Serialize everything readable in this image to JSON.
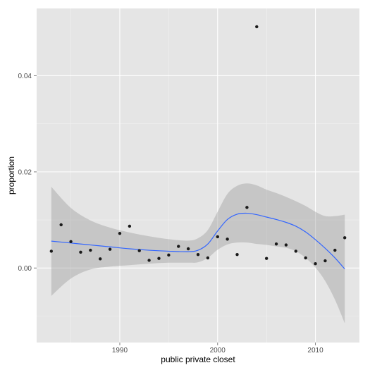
{
  "chart_data": {
    "type": "scatter",
    "title": "",
    "xlabel": "public private closet",
    "ylabel": "proportion",
    "xlim": [
      1981.5,
      2014.5
    ],
    "ylim": [
      -0.0155,
      0.054
    ],
    "x_ticks": [
      1990,
      2000,
      2010
    ],
    "x_tick_labels": [
      "1990",
      "2000",
      "2010"
    ],
    "y_ticks": [
      0.0,
      0.02,
      0.04
    ],
    "y_tick_labels": [
      "0.00",
      "0.02",
      "0.04"
    ],
    "grid": true,
    "legend": "none",
    "colors": {
      "panel": "#e5e5e5",
      "grid_major": "#ffffff",
      "grid_minor": "#f2f2f2",
      "points": "#1a1a1a",
      "smooth_line": "#3366ff",
      "ribbon": "#999999"
    },
    "points": {
      "x": [
        1983,
        1984,
        1985,
        1986,
        1987,
        1988,
        1989,
        1990,
        1991,
        1992,
        1993,
        1994,
        1995,
        1996,
        1997,
        1998,
        1999,
        2000,
        2001,
        2002,
        2003,
        2004,
        2005,
        2006,
        2007,
        2008,
        2009,
        2010,
        2011,
        2012,
        2013
      ],
      "y": [
        0.0035,
        0.009,
        0.0055,
        0.0033,
        0.0037,
        0.0019,
        0.0039,
        0.0072,
        0.0087,
        0.0036,
        0.0016,
        0.002,
        0.0027,
        0.0045,
        0.004,
        0.0028,
        0.0021,
        0.0065,
        0.006,
        0.0028,
        0.0126,
        0.0502,
        0.002,
        0.005,
        0.0048,
        0.0035,
        0.0021,
        0.0009,
        0.0015,
        0.0037,
        0.0063
      ]
    },
    "smooth": {
      "x": [
        1983,
        1985,
        1987,
        1989,
        1991,
        1993,
        1995,
        1997,
        1998,
        1999,
        2000,
        2001,
        2002,
        2003,
        2004,
        2005,
        2006,
        2007,
        2008,
        2009,
        2010,
        2011,
        2012,
        2013
      ],
      "y": [
        0.0056,
        0.0052,
        0.0048,
        0.0044,
        0.004,
        0.0037,
        0.0035,
        0.0034,
        0.0037,
        0.005,
        0.0077,
        0.0101,
        0.0112,
        0.0114,
        0.0111,
        0.0106,
        0.0101,
        0.0095,
        0.0087,
        0.0075,
        0.0059,
        0.0041,
        0.0021,
        -0.0002
      ],
      "lower": [
        -0.0058,
        -0.0022,
        -0.0003,
        0.0003,
        0.0006,
        0.0009,
        0.0011,
        0.0011,
        0.0012,
        0.0021,
        0.0038,
        0.0049,
        0.0053,
        0.0053,
        0.005,
        0.0048,
        0.0045,
        0.0042,
        0.0035,
        0.0021,
        0.0001,
        -0.0027,
        -0.0066,
        -0.0115
      ],
      "upper": [
        0.0169,
        0.0125,
        0.0099,
        0.0084,
        0.0074,
        0.0066,
        0.006,
        0.0057,
        0.0062,
        0.0079,
        0.0117,
        0.0154,
        0.0171,
        0.0176,
        0.0172,
        0.0163,
        0.0156,
        0.0148,
        0.0139,
        0.0129,
        0.0117,
        0.0108,
        0.0108,
        0.0111
      ]
    }
  }
}
